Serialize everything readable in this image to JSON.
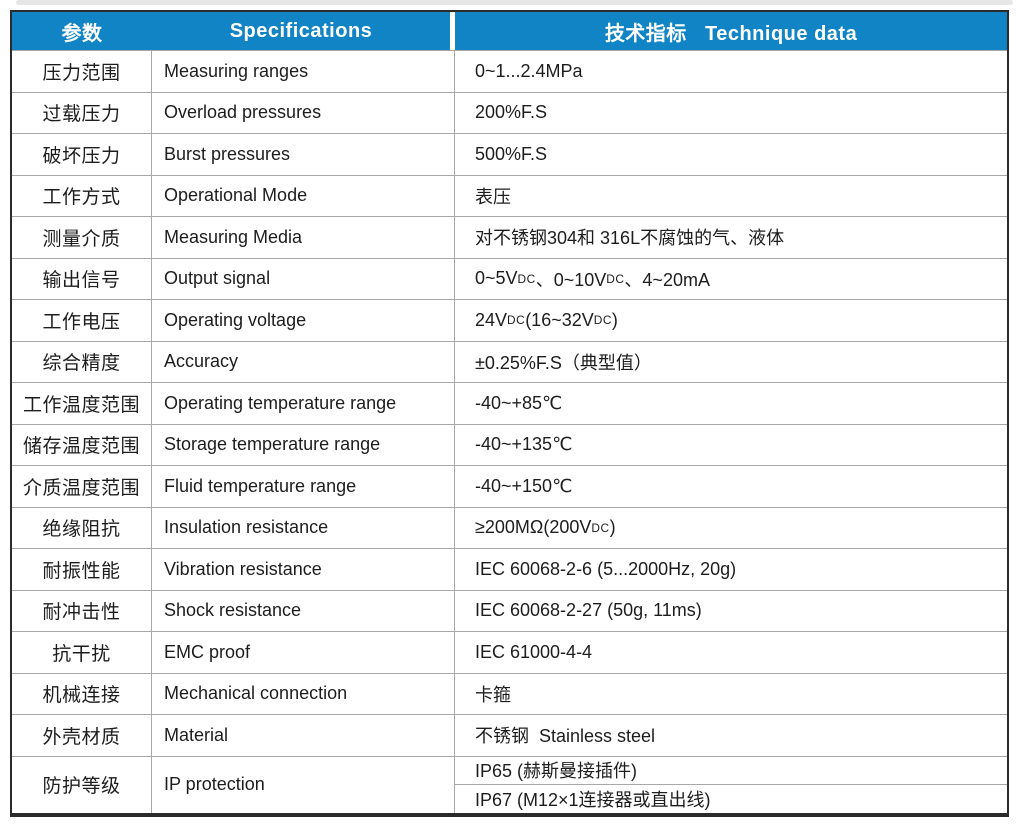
{
  "colors": {
    "header_bg": "#1184c6",
    "header_text": "#ffffff",
    "body_text": "#1d1d1d",
    "grid_line": "#a8a8a8",
    "outer_border": "#2b2b2b",
    "page_bg": "#ffffff"
  },
  "header": {
    "col1": "参数",
    "col2": "Specifications",
    "col3": "技术指标   Technique data"
  },
  "rows": [
    {
      "cn": "压力范围",
      "en": "Measuring ranges",
      "value": "0~1...2.4MPa"
    },
    {
      "cn": "过载压力",
      "en": "Overload pressures",
      "value": "200%F.S"
    },
    {
      "cn": "破坏压力",
      "en": "Burst pressures",
      "value": "500%F.S"
    },
    {
      "cn": "工作方式",
      "en": "Operational Mode",
      "value": "表压"
    },
    {
      "cn": "测量介质",
      "en": "Measuring Media",
      "value": "对不锈钢304和 316L不腐蚀的气、液体"
    },
    {
      "cn": "输出信号",
      "en": "Output signal",
      "value": "0~5VDC、0~10VDC、4~20mA"
    },
    {
      "cn": "工作电压",
      "en": "Operating voltage",
      "value": "24VDC(16~32VDC)"
    },
    {
      "cn": "综合精度",
      "en": "Accuracy",
      "value": "±0.25%F.S（典型值）"
    },
    {
      "cn": "工作温度范围",
      "en": "Operating temperature range",
      "value": "-40~+85℃"
    },
    {
      "cn": "储存温度范围",
      "en": "Storage temperature range",
      "value": "-40~+135℃"
    },
    {
      "cn": "介质温度范围",
      "en": "Fluid temperature range",
      "value": "-40~+150℃"
    },
    {
      "cn": "绝缘阻抗",
      "en": "Insulation resistance",
      "value": "≥200MΩ(200VDC)"
    },
    {
      "cn": "耐振性能",
      "en": "Vibration resistance",
      "value": "IEC 60068-2-6 (5...2000Hz, 20g)"
    },
    {
      "cn": "耐冲击性",
      "en": "Shock resistance",
      "value": "IEC 60068-2-27 (50g, 11ms)"
    },
    {
      "cn": "抗干扰",
      "en": "EMC proof",
      "value": "IEC 61000-4-4"
    },
    {
      "cn": "机械连接",
      "en": "Mechanical connection",
      "value": "卡箍"
    },
    {
      "cn": "外壳材质",
      "en": "Material",
      "value": "不锈钢  Stainless steel"
    },
    {
      "cn": "防护等级",
      "en": "IP protection",
      "values": [
        "IP65 (赫斯曼接插件)",
        "IP67 (M12×1连接器或直出线)"
      ]
    }
  ]
}
